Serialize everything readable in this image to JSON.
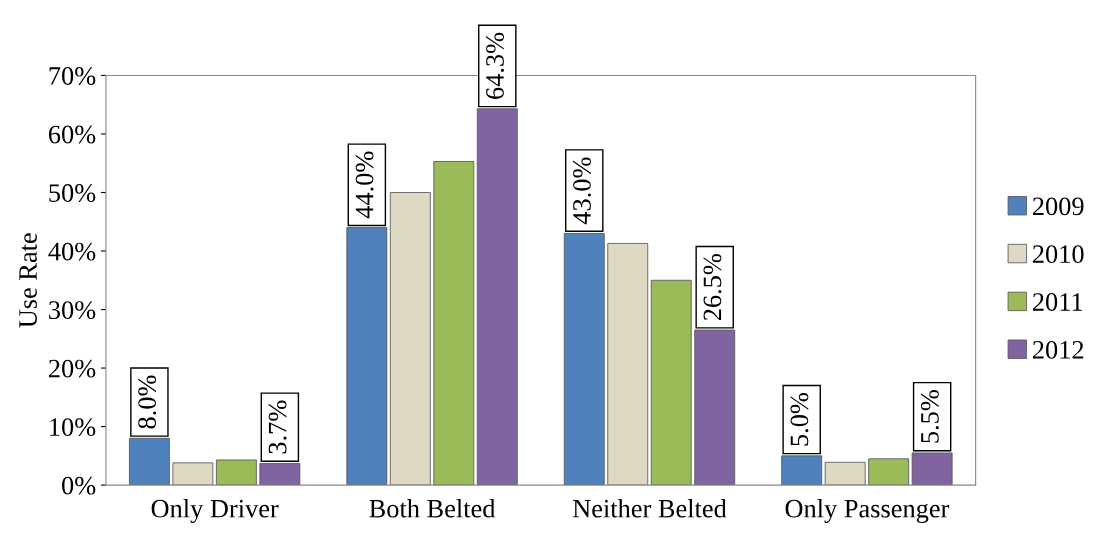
{
  "chart_data": {
    "type": "bar",
    "ylabel": "Use Rate",
    "categories": [
      "Only Driver",
      "Both Belted",
      "Neither Belted",
      "Only Passenger"
    ],
    "series": [
      {
        "name": "2009",
        "color": "#4f81bd",
        "values": [
          8.0,
          44.0,
          43.0,
          5.0
        ],
        "value_labels": [
          "8.0%",
          "44.0%",
          "43.0%",
          "5.0%"
        ]
      },
      {
        "name": "2010",
        "color": "#ddd9c3",
        "values": [
          3.8,
          50.0,
          41.3,
          3.9
        ],
        "value_labels": [
          null,
          null,
          null,
          null
        ]
      },
      {
        "name": "2011",
        "color": "#9bbb59",
        "values": [
          4.3,
          55.3,
          35.0,
          4.5
        ],
        "value_labels": [
          null,
          null,
          null,
          null
        ]
      },
      {
        "name": "2012",
        "color": "#8064a2",
        "values": [
          3.7,
          64.3,
          26.5,
          5.5
        ],
        "value_labels": [
          "3.7%",
          "64.3%",
          "26.5%",
          "5.5%"
        ]
      }
    ],
    "ylim": [
      0,
      70
    ],
    "yticks": [
      {
        "value": 0,
        "label": "0%"
      },
      {
        "value": 10,
        "label": "10%"
      },
      {
        "value": 20,
        "label": "20%"
      },
      {
        "value": 30,
        "label": "30%"
      },
      {
        "value": 40,
        "label": "40%"
      },
      {
        "value": 50,
        "label": "50%"
      },
      {
        "value": 60,
        "label": "60%"
      },
      {
        "value": 70,
        "label": "70%"
      }
    ],
    "grid": false,
    "legend": "right"
  }
}
